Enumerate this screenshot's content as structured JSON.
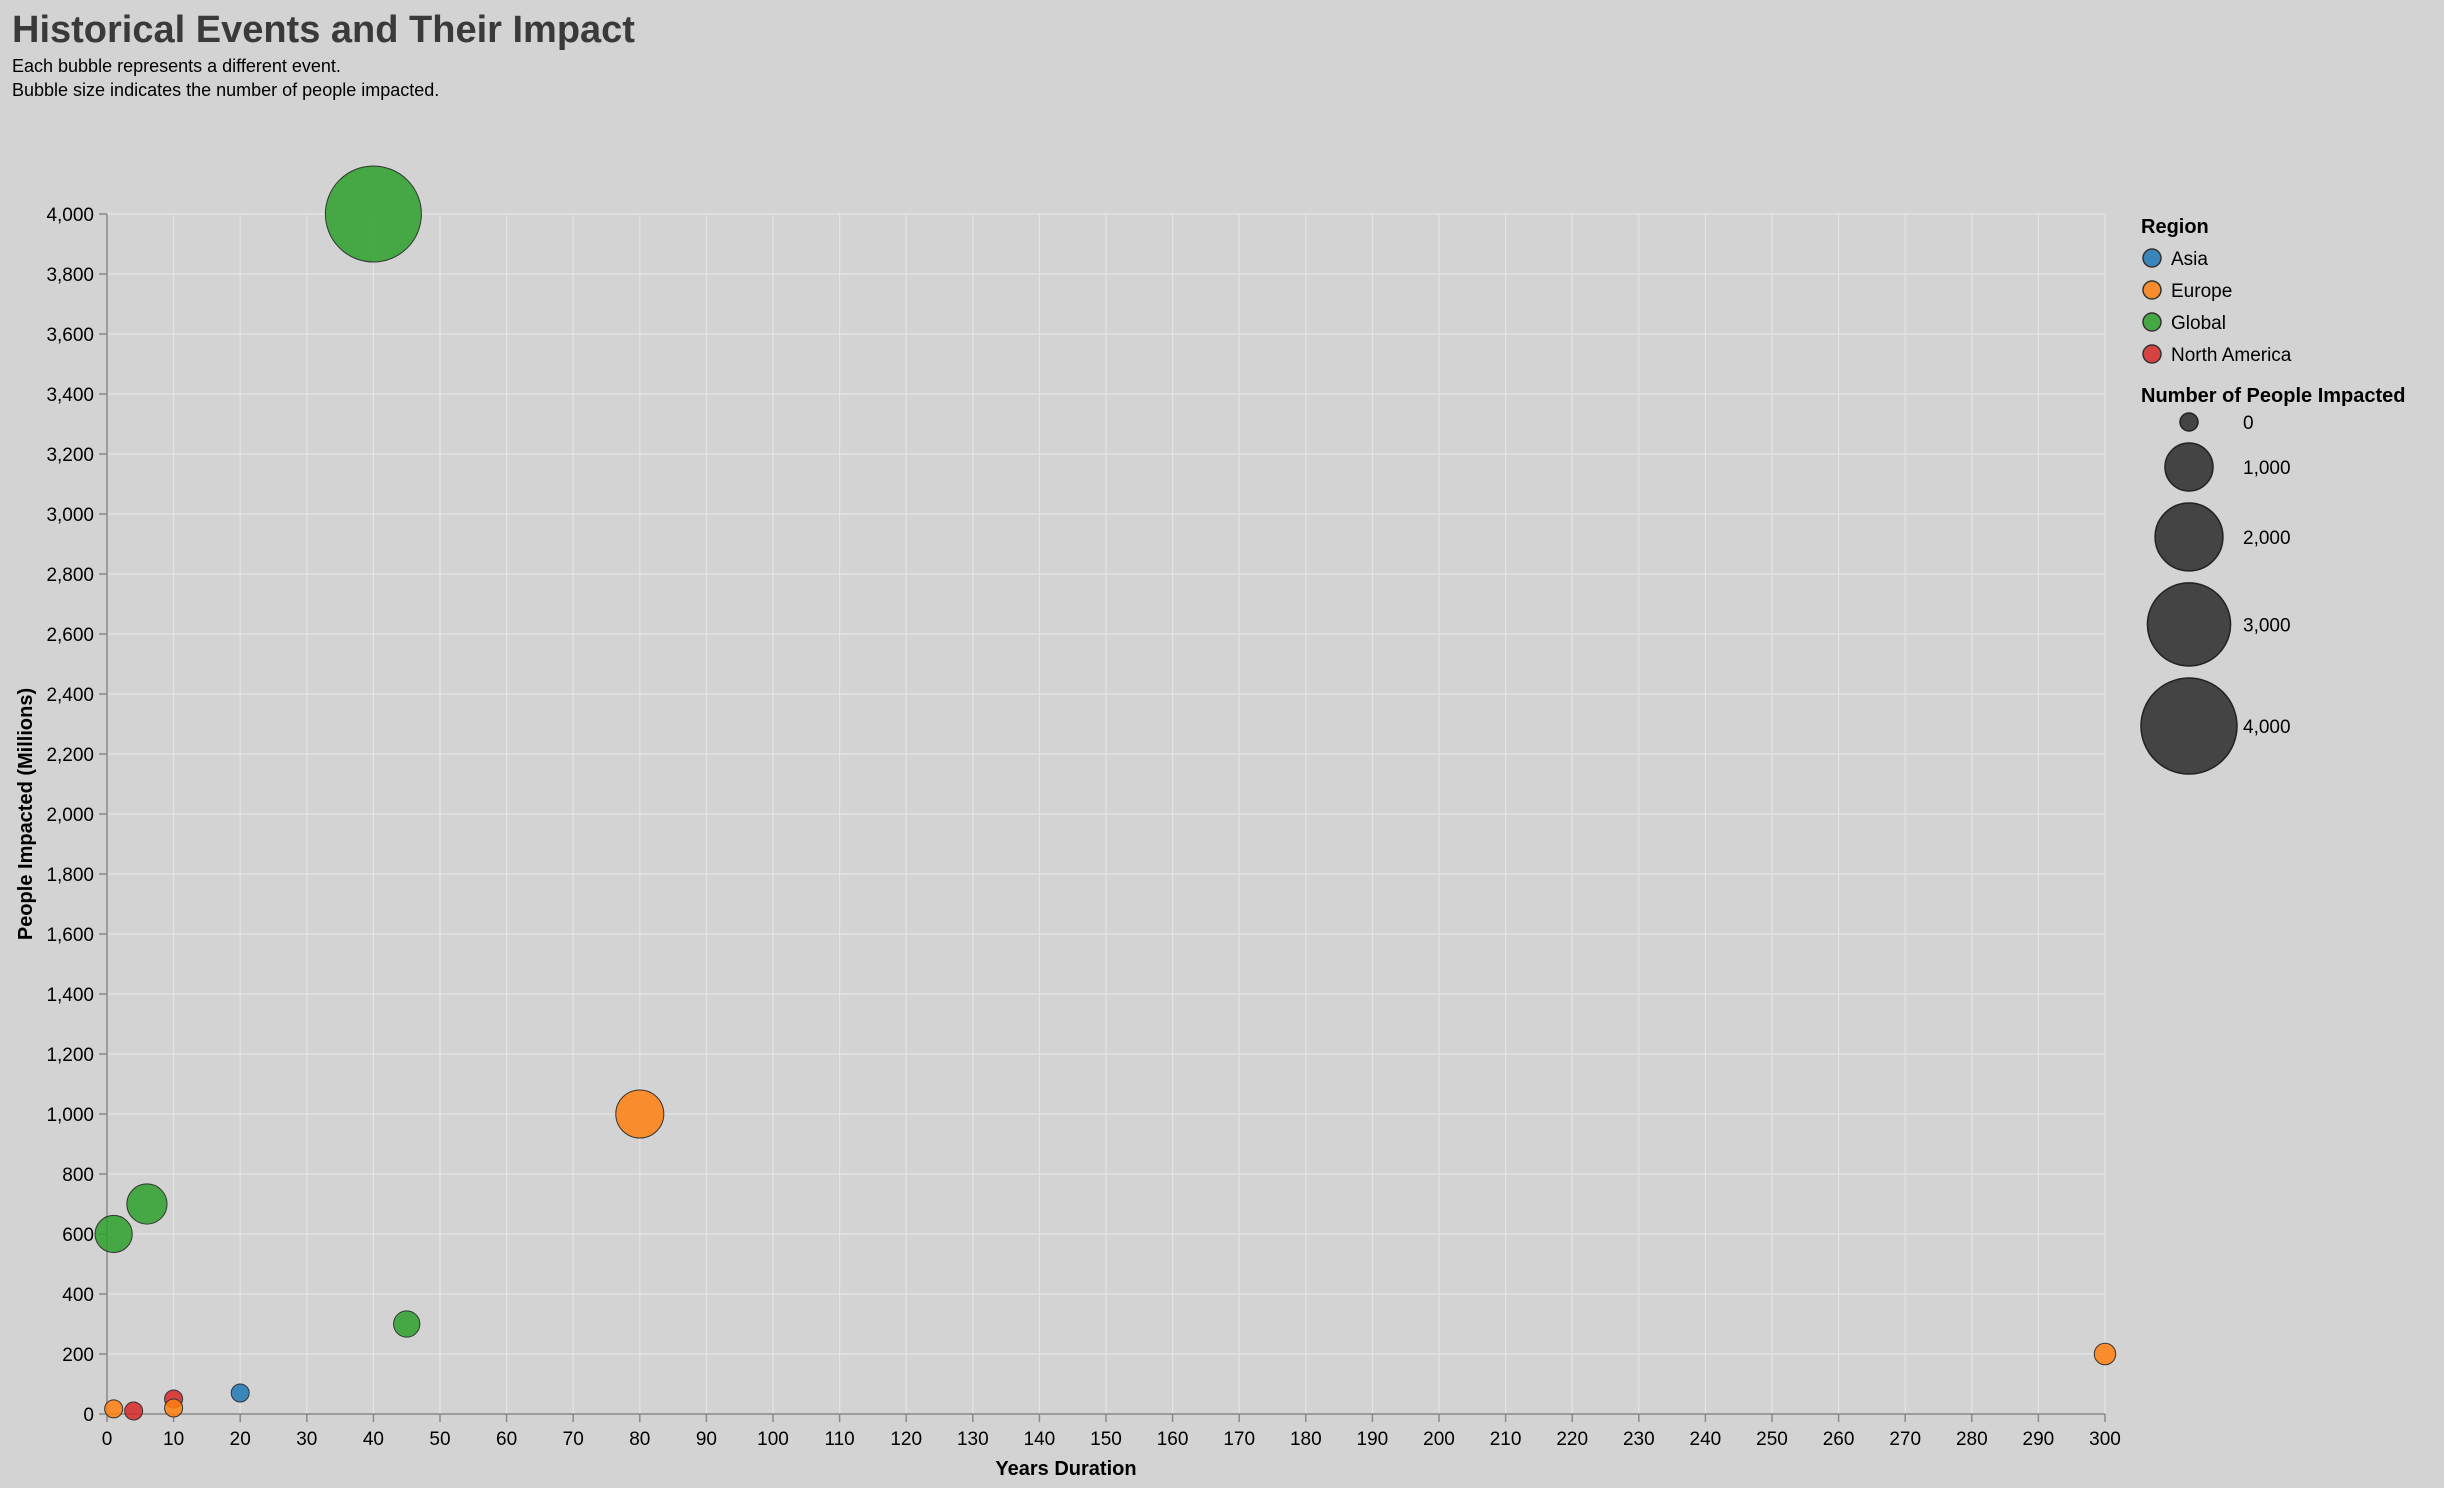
{
  "chart_data": {
    "type": "scatter",
    "title": "Historical Events and Their Impact",
    "subtitle": [
      "Each bubble represents a different event.",
      "Bubble size indicates the number of people impacted."
    ],
    "xlabel": "Years Duration",
    "ylabel": "People Impacted (Millions)",
    "xlim": [
      0,
      300
    ],
    "ylim": [
      0,
      4000
    ],
    "x_ticks": [
      0,
      10,
      20,
      30,
      40,
      50,
      60,
      70,
      80,
      90,
      100,
      110,
      120,
      130,
      140,
      150,
      160,
      170,
      180,
      190,
      200,
      210,
      220,
      230,
      240,
      250,
      260,
      270,
      280,
      290,
      300
    ],
    "y_ticks": [
      0,
      200,
      400,
      600,
      800,
      1000,
      1200,
      1400,
      1600,
      1800,
      2000,
      2200,
      2400,
      2600,
      2800,
      3000,
      3200,
      3400,
      3600,
      3800,
      4000
    ],
    "grid": true,
    "legend_placement": "right",
    "color_legend": {
      "title": "Region",
      "items": [
        {
          "label": "Asia",
          "color": "#1f77b4"
        },
        {
          "label": "Europe",
          "color": "#ff7f0e"
        },
        {
          "label": "Global",
          "color": "#2ca02c"
        },
        {
          "label": "North America",
          "color": "#d62728"
        }
      ]
    },
    "size_legend": {
      "title": "Number of People Impacted",
      "values": [
        0,
        1000,
        2000,
        3000,
        4000
      ]
    },
    "points": [
      {
        "x": 40,
        "y": 4000,
        "region": "Global"
      },
      {
        "x": 80,
        "y": 1000,
        "region": "Europe"
      },
      {
        "x": 6,
        "y": 700,
        "region": "Global"
      },
      {
        "x": 1,
        "y": 600,
        "region": "Global"
      },
      {
        "x": 45,
        "y": 300,
        "region": "Global"
      },
      {
        "x": 300,
        "y": 200,
        "region": "Europe"
      },
      {
        "x": 20,
        "y": 70,
        "region": "Asia"
      },
      {
        "x": 10,
        "y": 50,
        "region": "North America"
      },
      {
        "x": 1,
        "y": 17,
        "region": "Europe"
      },
      {
        "x": 10,
        "y": 20,
        "region": "Europe"
      },
      {
        "x": 4,
        "y": 10,
        "region": "North America"
      }
    ]
  }
}
